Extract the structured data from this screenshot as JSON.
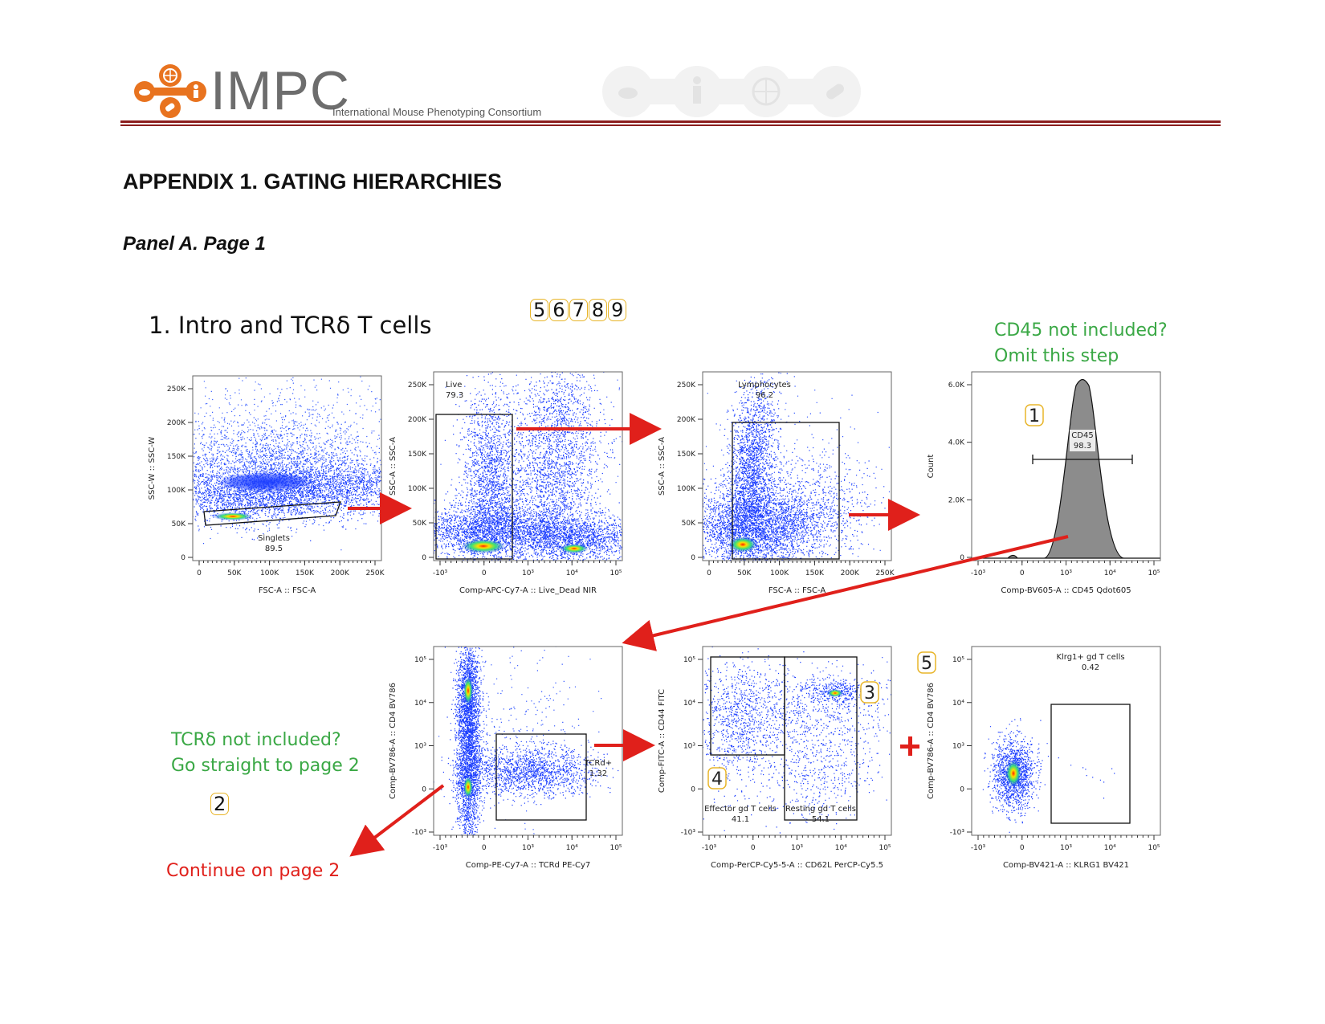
{
  "header": {
    "logo_text": "IMPC",
    "logo_subtext": "International Mouse Phenotyping Consortium",
    "logo_icon": "impc-consortium-icon",
    "watermark_icons": [
      "mouse-icon",
      "human-icon",
      "globe-icon",
      "pill-icon"
    ]
  },
  "page": {
    "title": "APPENDIX 1. GATING HIERARCHIES",
    "subtitle": "Panel A. Page 1",
    "section_heading": "1. Intro and TCRδ T cells",
    "badges": [
      "5",
      "6",
      "7",
      "8",
      "9"
    ]
  },
  "notes": {
    "cd45_line1": "CD45 not included?",
    "cd45_line2": "Omit this step",
    "tcrd_line1": "TCRδ not included?",
    "tcrd_line2": "Go straight to page 2",
    "continue": "Continue on page 2",
    "step_badges": {
      "cd45": "1",
      "tcrd": "2",
      "resting": "3",
      "effector": "4",
      "klrg1": "5"
    }
  },
  "plots": {
    "singlets": {
      "xlabel": "FSC-A :: FSC-A",
      "ylabel": "SSC-W :: SSC-W",
      "xticks": [
        "0",
        "50K",
        "100K",
        "150K",
        "200K",
        "250K"
      ],
      "yticks": [
        "0",
        "50K",
        "100K",
        "150K",
        "200K",
        "250K"
      ],
      "gate_name": "Singlets",
      "gate_value": "89.5"
    },
    "live": {
      "xlabel": "Comp-APC-Cy7-A :: Live_Dead NIR",
      "ylabel": "SSC-A :: SSC-A",
      "xticks": [
        "-10³",
        "0",
        "10³",
        "10⁴",
        "10⁵"
      ],
      "yticks": [
        "0",
        "50K",
        "100K",
        "150K",
        "200K",
        "250K"
      ],
      "gate_name": "Live",
      "gate_value": "79.3"
    },
    "lymphocytes": {
      "xlabel": "FSC-A :: FSC-A",
      "ylabel": "SSC-A :: SSC-A",
      "xticks": [
        "0",
        "50K",
        "100K",
        "150K",
        "200K",
        "250K"
      ],
      "yticks": [
        "0",
        "50K",
        "100K",
        "150K",
        "200K",
        "250K"
      ],
      "gate_name": "Lymphocytes",
      "gate_value": "96.2"
    },
    "cd45": {
      "xlabel": "Comp-BV605-A :: CD45 Qdot605",
      "ylabel": "Count",
      "xticks": [
        "-10³",
        "0",
        "10³",
        "10⁴",
        "10⁵"
      ],
      "yticks": [
        "0",
        "2.0K",
        "4.0K",
        "6.0K"
      ],
      "gate_name": "CD45",
      "gate_value": "98.3"
    },
    "tcrd": {
      "xlabel": "Comp-PE-Cy7-A :: TCRd PE-Cy7",
      "ylabel": "Comp-BV786-A :: CD4 BV786",
      "xticks": [
        "-10³",
        "0",
        "10³",
        "10⁴",
        "10⁵"
      ],
      "yticks": [
        "-10³",
        "0",
        "10³",
        "10⁴",
        "10⁵"
      ],
      "gate_name": "TCRd+",
      "gate_value": "1.32"
    },
    "effector": {
      "xlabel": "Comp-PerCP-Cy5-5-A :: CD62L PerCP-Cy5.5",
      "ylabel": "Comp-FITC-A :: CD44 FITC",
      "xticks": [
        "-10³",
        "0",
        "10³",
        "10⁴",
        "10⁵"
      ],
      "yticks": [
        "-10³",
        "0",
        "10³",
        "10⁴",
        "10⁵"
      ],
      "gate1_name": "Effector gd T cells",
      "gate1_value": "41.1",
      "gate2_name": "Resting gd T cells",
      "gate2_value": "54.1"
    },
    "klrg1": {
      "xlabel": "Comp-BV421-A :: KLRG1 BV421",
      "ylabel": "Comp-BV786-A :: CD4 BV786",
      "xticks": [
        "-10³",
        "0",
        "10³",
        "10⁴",
        "10⁵"
      ],
      "yticks": [
        "-10³",
        "0",
        "10³",
        "10⁴",
        "10⁵"
      ],
      "gate_name": "Klrg1+ gd T cells",
      "gate_value": "0.42"
    }
  },
  "colors": {
    "arrow": "#e0201b",
    "note_green": "#3aa845",
    "header_rule": "#8b1d1d",
    "logo_orange": "#e8731f",
    "badge_border": "#e8b52a",
    "density_low": "#1a3cff",
    "density_high": "#ff2a00"
  }
}
